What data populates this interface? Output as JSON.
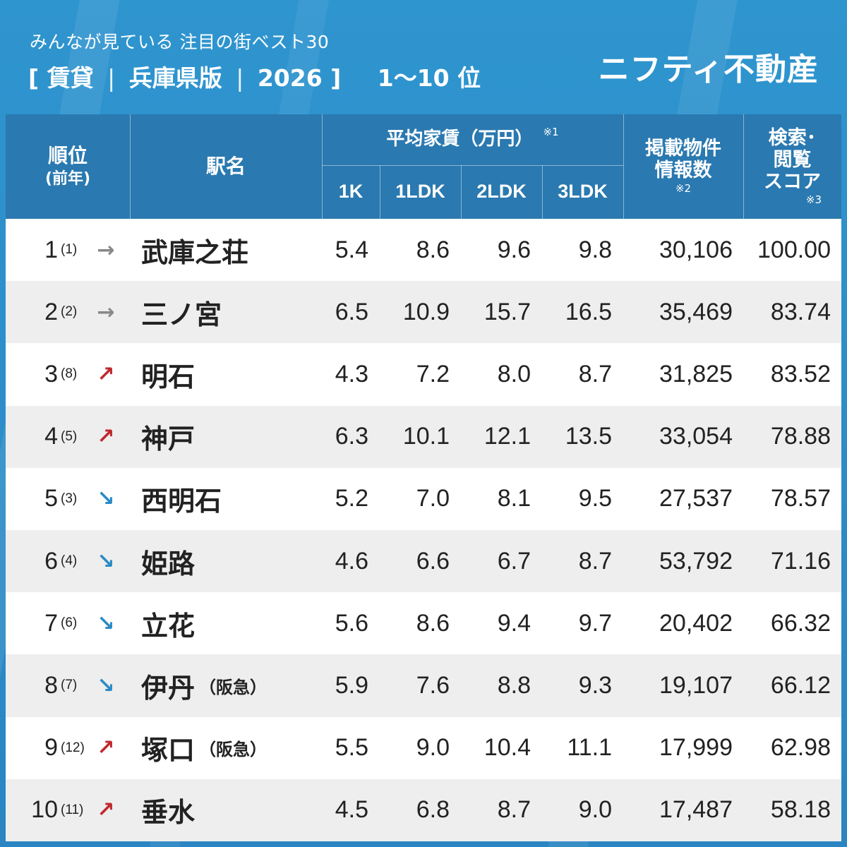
{
  "header": {
    "subtitle": "みんなが見ている 注目の街ベスト30",
    "title_parts": [
      "[ 賃貸",
      "|",
      "兵庫県版",
      "|",
      "2026 ]"
    ],
    "range": "1〜10 位",
    "brand": "ニフティ不動産"
  },
  "table": {
    "headers": {
      "rank": "順位",
      "rank_prev": "(前年)",
      "station": "駅名",
      "avg_rent": "平均家賃（万円）",
      "avg_rent_note": "※1",
      "sub": [
        "1K",
        "1LDK",
        "2LDK",
        "3LDK"
      ],
      "listings": "掲載物件\n情報数",
      "listings_l1": "掲載物件",
      "listings_l2": "情報数",
      "listings_note": "※2",
      "score_l1": "検索･",
      "score_l2": "閲覧",
      "score_l3": "スコア",
      "score_note": "※3"
    },
    "rows": [
      {
        "rank": "1",
        "prev": "(1)",
        "trend": "flat",
        "arrow": "→",
        "station": "武庫之荘",
        "suffix": "",
        "k1": "5.4",
        "ldk1": "8.6",
        "ldk2": "9.6",
        "ldk3": "9.8",
        "listings": "30,106",
        "score": "100.00"
      },
      {
        "rank": "2",
        "prev": "(2)",
        "trend": "flat",
        "arrow": "→",
        "station": "三ノ宮",
        "suffix": "",
        "k1": "6.5",
        "ldk1": "10.9",
        "ldk2": "15.7",
        "ldk3": "16.5",
        "listings": "35,469",
        "score": "83.74"
      },
      {
        "rank": "3",
        "prev": "(8)",
        "trend": "up",
        "arrow": "↗",
        "station": "明石",
        "suffix": "",
        "k1": "4.3",
        "ldk1": "7.2",
        "ldk2": "8.0",
        "ldk3": "8.7",
        "listings": "31,825",
        "score": "83.52"
      },
      {
        "rank": "4",
        "prev": "(5)",
        "trend": "up",
        "arrow": "↗",
        "station": "神戸",
        "suffix": "",
        "k1": "6.3",
        "ldk1": "10.1",
        "ldk2": "12.1",
        "ldk3": "13.5",
        "listings": "33,054",
        "score": "78.88"
      },
      {
        "rank": "5",
        "prev": "(3)",
        "trend": "down",
        "arrow": "↘",
        "station": "西明石",
        "suffix": "",
        "k1": "5.2",
        "ldk1": "7.0",
        "ldk2": "8.1",
        "ldk3": "9.5",
        "listings": "27,537",
        "score": "78.57"
      },
      {
        "rank": "6",
        "prev": "(4)",
        "trend": "down",
        "arrow": "↘",
        "station": "姫路",
        "suffix": "",
        "k1": "4.6",
        "ldk1": "6.6",
        "ldk2": "6.7",
        "ldk3": "8.7",
        "listings": "53,792",
        "score": "71.16"
      },
      {
        "rank": "7",
        "prev": "(6)",
        "trend": "down",
        "arrow": "↘",
        "station": "立花",
        "suffix": "",
        "k1": "5.6",
        "ldk1": "8.6",
        "ldk2": "9.4",
        "ldk3": "9.7",
        "listings": "20,402",
        "score": "66.32"
      },
      {
        "rank": "8",
        "prev": "(7)",
        "trend": "down",
        "arrow": "↘",
        "station": "伊丹",
        "suffix": "（阪急）",
        "k1": "5.9",
        "ldk1": "7.6",
        "ldk2": "8.8",
        "ldk3": "9.3",
        "listings": "19,107",
        "score": "66.12"
      },
      {
        "rank": "9",
        "prev": "(12)",
        "trend": "up",
        "arrow": "↗",
        "station": "塚口",
        "suffix": "（阪急）",
        "k1": "5.5",
        "ldk1": "9.0",
        "ldk2": "10.4",
        "ldk3": "11.1",
        "listings": "17,999",
        "score": "62.98"
      },
      {
        "rank": "10",
        "prev": "(11)",
        "trend": "up",
        "arrow": "↗",
        "station": "垂水",
        "suffix": "",
        "k1": "4.5",
        "ldk1": "6.8",
        "ldk2": "8.7",
        "ldk3": "9.0",
        "listings": "17,487",
        "score": "58.18"
      }
    ]
  },
  "colors": {
    "background": "#2d8cc8",
    "header_bg": "#2a79b0",
    "row_alt": "#eeeeee",
    "arrow_up": "#c0272d",
    "arrow_down": "#2a8ac6",
    "arrow_flat": "#888888"
  }
}
